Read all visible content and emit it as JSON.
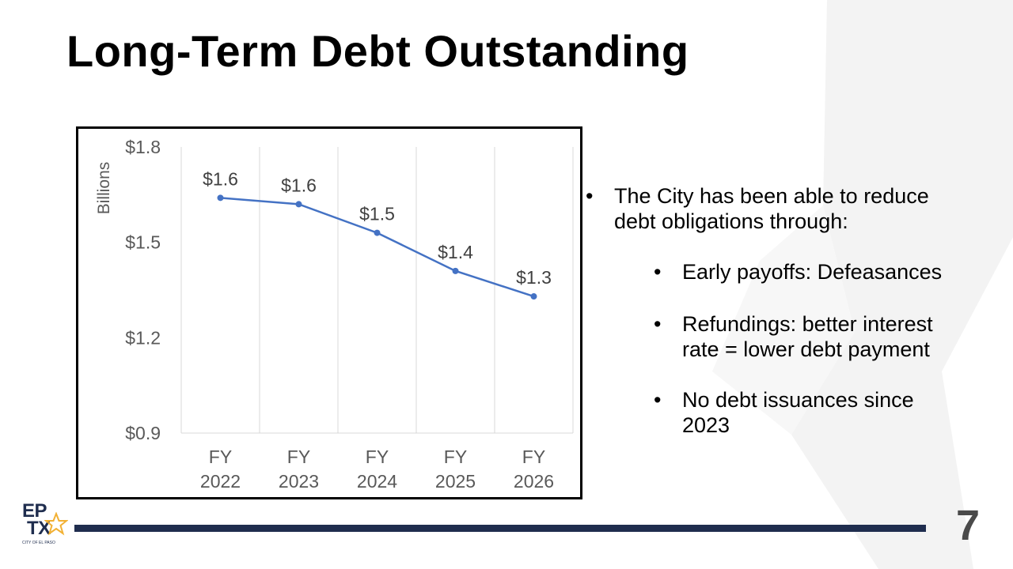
{
  "title": "Long-Term Debt Outstanding",
  "page_number": "7",
  "logo": {
    "line1": "EP",
    "line2": "TX",
    "subtitle": "CITY OF EL PASO"
  },
  "bullets": {
    "main": "The City has been able to reduce debt obligations through:",
    "sub": [
      "Early payoffs: Defeasances",
      "Refundings: better interest rate = lower debt payment",
      "No debt issuances since 2023"
    ]
  },
  "colors": {
    "line": "#4472c4",
    "footer": "#1f2d4e",
    "grid": "#d9d9d9"
  },
  "chart_data": {
    "type": "line",
    "title": "",
    "ylabel": "Billions",
    "xlabel": "",
    "categories": [
      [
        "FY",
        "2022"
      ],
      [
        "FY",
        "2023"
      ],
      [
        "FY",
        "2024"
      ],
      [
        "FY",
        "2025"
      ],
      [
        "FY",
        "2026"
      ]
    ],
    "values": [
      1.64,
      1.62,
      1.53,
      1.41,
      1.33
    ],
    "data_labels": [
      "$1.6",
      "$1.6",
      "$1.5",
      "$1.4",
      "$1.3"
    ],
    "yticks": [
      0.9,
      1.2,
      1.5,
      1.8
    ],
    "ytick_labels": [
      "$0.9",
      "$1.2",
      "$1.5",
      "$1.8"
    ],
    "ylim": [
      0.9,
      1.8
    ],
    "grid": "vertical",
    "legend": "none"
  }
}
